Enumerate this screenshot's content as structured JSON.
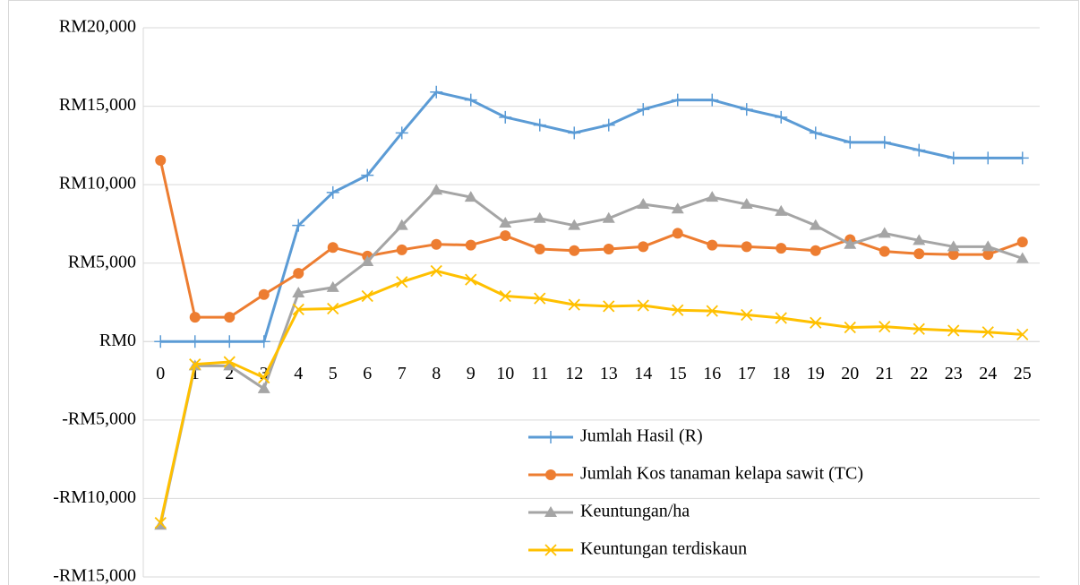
{
  "chart_data": {
    "type": "line",
    "categories": [
      "0",
      "1",
      "2",
      "3",
      "4",
      "5",
      "6",
      "7",
      "8",
      "9",
      "10",
      "11",
      "12",
      "13",
      "14",
      "15",
      "16",
      "17",
      "18",
      "19",
      "20",
      "21",
      "22",
      "23",
      "24",
      "25"
    ],
    "series": [
      {
        "name": "Jumlah Hasil (R)",
        "color": "#5b9bd5",
        "marker": "plus",
        "values": [
          0,
          0,
          0,
          0,
          7400,
          9500,
          10600,
          13300,
          15900,
          15400,
          14300,
          13800,
          13300,
          13800,
          14800,
          15400,
          15400,
          14800,
          14300,
          13300,
          12700,
          12700,
          12200,
          11700,
          11700,
          11700
        ]
      },
      {
        "name": "Jumlah Kos tanaman kelapa sawit (TC)",
        "color": "#ed7d31",
        "marker": "circle",
        "values": [
          11550,
          1550,
          1550,
          3000,
          4350,
          6000,
          5450,
          5850,
          6200,
          6150,
          6750,
          5900,
          5800,
          5900,
          6050,
          6900,
          6150,
          6050,
          5950,
          5800,
          6500,
          5750,
          5600,
          5550,
          5550,
          6350
        ]
      },
      {
        "name": "Keuntungan/ha",
        "color": "#a5a5a5",
        "marker": "triangle",
        "values": [
          -11700,
          -1550,
          -1550,
          -3000,
          3100,
          3450,
          5100,
          7400,
          9650,
          9200,
          7550,
          7850,
          7400,
          7850,
          8750,
          8450,
          9200,
          8750,
          8300,
          7400,
          6200,
          6900,
          6450,
          6050,
          6050,
          5300
        ]
      },
      {
        "name": "Keuntungan terdiskaun",
        "color": "#ffc000",
        "marker": "x",
        "values": [
          -11550,
          -1450,
          -1300,
          -2300,
          2050,
          2100,
          2900,
          3800,
          4500,
          3950,
          2900,
          2750,
          2350,
          2250,
          2300,
          2000,
          1950,
          1700,
          1500,
          1200,
          900,
          950,
          800,
          700,
          600,
          450
        ]
      }
    ],
    "ylim": [
      -15000,
      20000
    ],
    "yticks": [
      {
        "value": -15000,
        "label": "-RM15,000"
      },
      {
        "value": -10000,
        "label": "-RM10,000"
      },
      {
        "value": -5000,
        "label": "-RM5,000"
      },
      {
        "value": 0,
        "label": "RM0"
      },
      {
        "value": 5000,
        "label": "RM5,000"
      },
      {
        "value": 10000,
        "label": "RM10,000"
      },
      {
        "value": 15000,
        "label": "RM15,000"
      },
      {
        "value": 20000,
        "label": "RM20,000"
      }
    ],
    "grid": true,
    "legend": "bottom-right"
  }
}
